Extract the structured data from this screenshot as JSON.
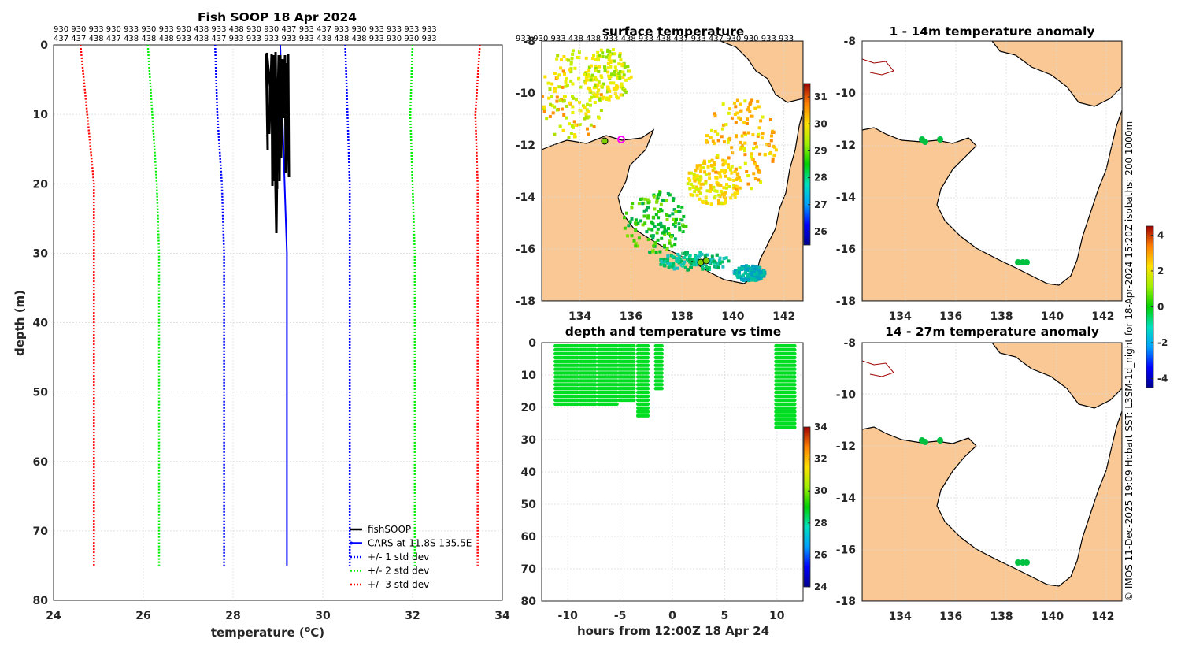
{
  "chart_data": [
    {
      "id": "profile",
      "type": "line",
      "title": "Fish SOOP 18 Apr 2024",
      "xlabel": "temperature (",
      "xlabel_unit": "o",
      "xlabel_tail": "C)",
      "ylabel": "depth (m)",
      "xlim": [
        24,
        34
      ],
      "ylim": [
        0,
        80
      ],
      "xticks": [
        "24",
        "26",
        "28",
        "30",
        "32",
        "34"
      ],
      "yticks": [
        "0",
        "10",
        "20",
        "30",
        "40",
        "50",
        "60",
        "70",
        "80"
      ],
      "top_label_rows": [
        "930 930 933 930 933 930 933 930 438 933 438 930 930 437 933 437 933 930 933 933 933 933",
        "437 437 438 437 438 438 438 933 438 437 933 933 933 933 933 438 438 438 933 930 930 933"
      ],
      "cars_location": "CARS at 11.8S 135.5E",
      "series": [
        {
          "name": "fishSOOP",
          "color": "#000000",
          "style": "solid"
        },
        {
          "name": "CARS at 11.8S 135.5E",
          "color": "#0000ff",
          "style": "solid",
          "depth": [
            0,
            10,
            20,
            30,
            75
          ],
          "temp": [
            29.05,
            29.1,
            29.15,
            29.2,
            29.2
          ]
        },
        {
          "name": "+/- 1 std dev",
          "color": "#0000ff",
          "style": "dotted",
          "depth": [
            0,
            10,
            20,
            30,
            75
          ],
          "lower": [
            27.6,
            27.65,
            27.75,
            27.8,
            27.8
          ],
          "upper": [
            30.5,
            30.55,
            30.6,
            30.6,
            30.6
          ]
        },
        {
          "name": "+/- 2 std dev",
          "color": "#00ee00",
          "style": "dotted",
          "depth": [
            0,
            10,
            20,
            30,
            75
          ],
          "lower": [
            26.1,
            26.2,
            26.3,
            26.35,
            26.35
          ],
          "upper": [
            32,
            31.95,
            32,
            32.05,
            32.05
          ]
        },
        {
          "name": "+/- 3 std dev",
          "color": "#ff0000",
          "style": "dotted",
          "depth": [
            0,
            10,
            20,
            30,
            75
          ],
          "lower": [
            24.6,
            24.75,
            24.9,
            24.9,
            24.9
          ],
          "upper": [
            33.5,
            33.4,
            33.45,
            33.45,
            33.45
          ]
        }
      ]
    },
    {
      "id": "surface",
      "type": "heatmap",
      "title": "surface temperature",
      "xticks": [
        "134",
        "136",
        "138",
        "140",
        "142"
      ],
      "yticks": [
        "-8",
        "-10",
        "-12",
        "-14",
        "-16",
        "-18"
      ],
      "colorbar": {
        "ticks": [
          "26",
          "27",
          "28",
          "29",
          "30",
          "31"
        ],
        "range": [
          25.5,
          31.5
        ]
      },
      "top_labels": "933 930 933 438 438 933 438 933 438 437 933 437 930 930 933 933"
    },
    {
      "id": "anom1",
      "type": "heatmap",
      "title": "1 - 14m temperature anomaly",
      "xticks": [
        "134",
        "136",
        "138",
        "140",
        "142"
      ],
      "yticks": [
        "-8",
        "-10",
        "-12",
        "-14",
        "-16",
        "-18"
      ]
    },
    {
      "id": "anom2",
      "type": "heatmap",
      "title": "14 - 27m temperature anomaly",
      "xticks": [
        "134",
        "136",
        "138",
        "140",
        "142"
      ],
      "yticks": [
        "-8",
        "-10",
        "-12",
        "-14",
        "-16",
        "-18"
      ],
      "colorbar": {
        "ticks": [
          "4",
          "2",
          "0",
          "-2",
          "-4"
        ],
        "range": [
          -4.5,
          4.5
        ]
      }
    },
    {
      "id": "timeseries",
      "type": "scatter",
      "title": "depth and temperature vs time",
      "xlabel": "hours from 12:00Z 18 Apr 24",
      "xlim": [
        -12.5,
        12.5
      ],
      "ylim": [
        0,
        80
      ],
      "xticks": [
        "-10",
        "-5",
        "0",
        "5",
        "10"
      ],
      "yticks": [
        "0",
        "10",
        "20",
        "30",
        "40",
        "50",
        "60",
        "70",
        "80"
      ],
      "colorbar": {
        "ticks": [
          "34",
          "32",
          "30",
          "28",
          "26",
          "24"
        ],
        "range": [
          24,
          34
        ]
      },
      "segments": [
        {
          "start": -11.2,
          "end": -9.0,
          "maxdepth": 20
        },
        {
          "start": -8.8,
          "end": -7.3,
          "maxdepth": 19
        },
        {
          "start": -7.1,
          "end": -5.2,
          "maxdepth": 19
        },
        {
          "start": -5.1,
          "end": -3.6,
          "maxdepth": 18
        },
        {
          "start": -3.3,
          "end": -2.3,
          "maxdepth": 23
        },
        {
          "start": -1.6,
          "end": -0.9,
          "maxdepth": 15
        },
        {
          "start": 9.9,
          "end": 11.8,
          "maxdepth": 27
        }
      ]
    }
  ],
  "side_note": "© IMOS 11-Dec-2025 19:09 Hobart SST: L3SM-1d_night for 18-Apr-2024 15:20Z isobaths: 200  1000m",
  "colors": {
    "land": "#f9c894",
    "frame": "#262626",
    "grid": "#d9d9d9"
  }
}
